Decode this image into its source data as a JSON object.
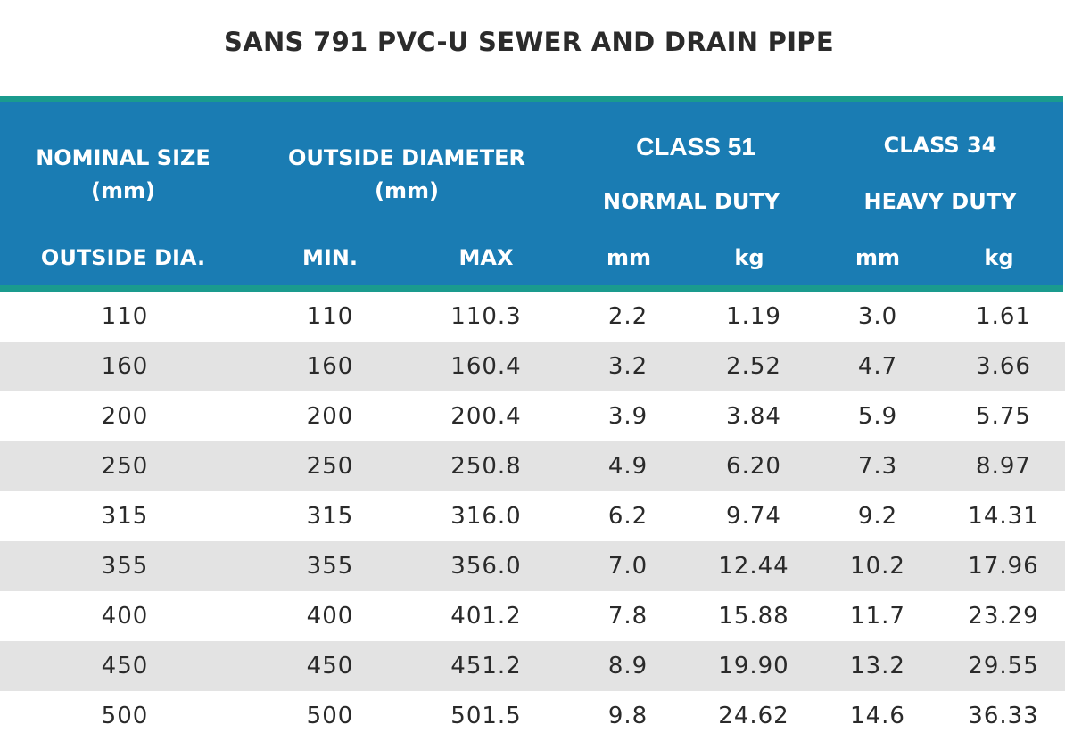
{
  "title": "SANS 791 PVC-U SEWER AND DRAIN PIPE",
  "header": {
    "nominal_size_line1": "NOMINAL SIZE",
    "nominal_size_line2": "(mm)",
    "nominal_size_line3": "OUTSIDE DIA.",
    "outside_diameter_line1": "OUTSIDE DIAMETER",
    "outside_diameter_line2": "(mm)",
    "min": "MIN.",
    "max": "MAX",
    "class51": "CLASS 51",
    "class51_duty": "NORMAL DUTY",
    "class34": "CLASS 34",
    "class34_duty": "HEAVY DUTY",
    "class51_mm": "mm",
    "class51_kg": "kg",
    "class34_mm": "mm",
    "class34_kg": "kg"
  },
  "rows": [
    [
      "110",
      "110",
      "110.3",
      "2.2",
      "1.19",
      "3.0",
      "1.61"
    ],
    [
      "160",
      "160",
      "160.4",
      "3.2",
      "2.52",
      "4.7",
      "3.66"
    ],
    [
      "200",
      "200",
      "200.4",
      "3.9",
      "3.84",
      "5.9",
      "5.75"
    ],
    [
      "250",
      "250",
      "250.8",
      "4.9",
      "6.20",
      "7.3",
      "8.97"
    ],
    [
      "315",
      "315",
      "316.0",
      "6.2",
      "9.74",
      "9.2",
      "14.31"
    ],
    [
      "355",
      "355",
      "356.0",
      "7.0",
      "12.44",
      "10.2",
      "17.96"
    ],
    [
      "400",
      "400",
      "401.2",
      "7.8",
      "15.88",
      "11.7",
      "23.29"
    ],
    [
      "450",
      "450",
      "451.2",
      "8.9",
      "19.90",
      "13.2",
      "29.55"
    ],
    [
      "500",
      "500",
      "501.5",
      "9.8",
      "24.62",
      "14.6",
      "36.33"
    ]
  ],
  "colors": {
    "header_bg": "#1a7cb3",
    "header_border": "#1a9b8e",
    "shaded_row": "#e3e3e3",
    "text": "#2a2a2a"
  }
}
